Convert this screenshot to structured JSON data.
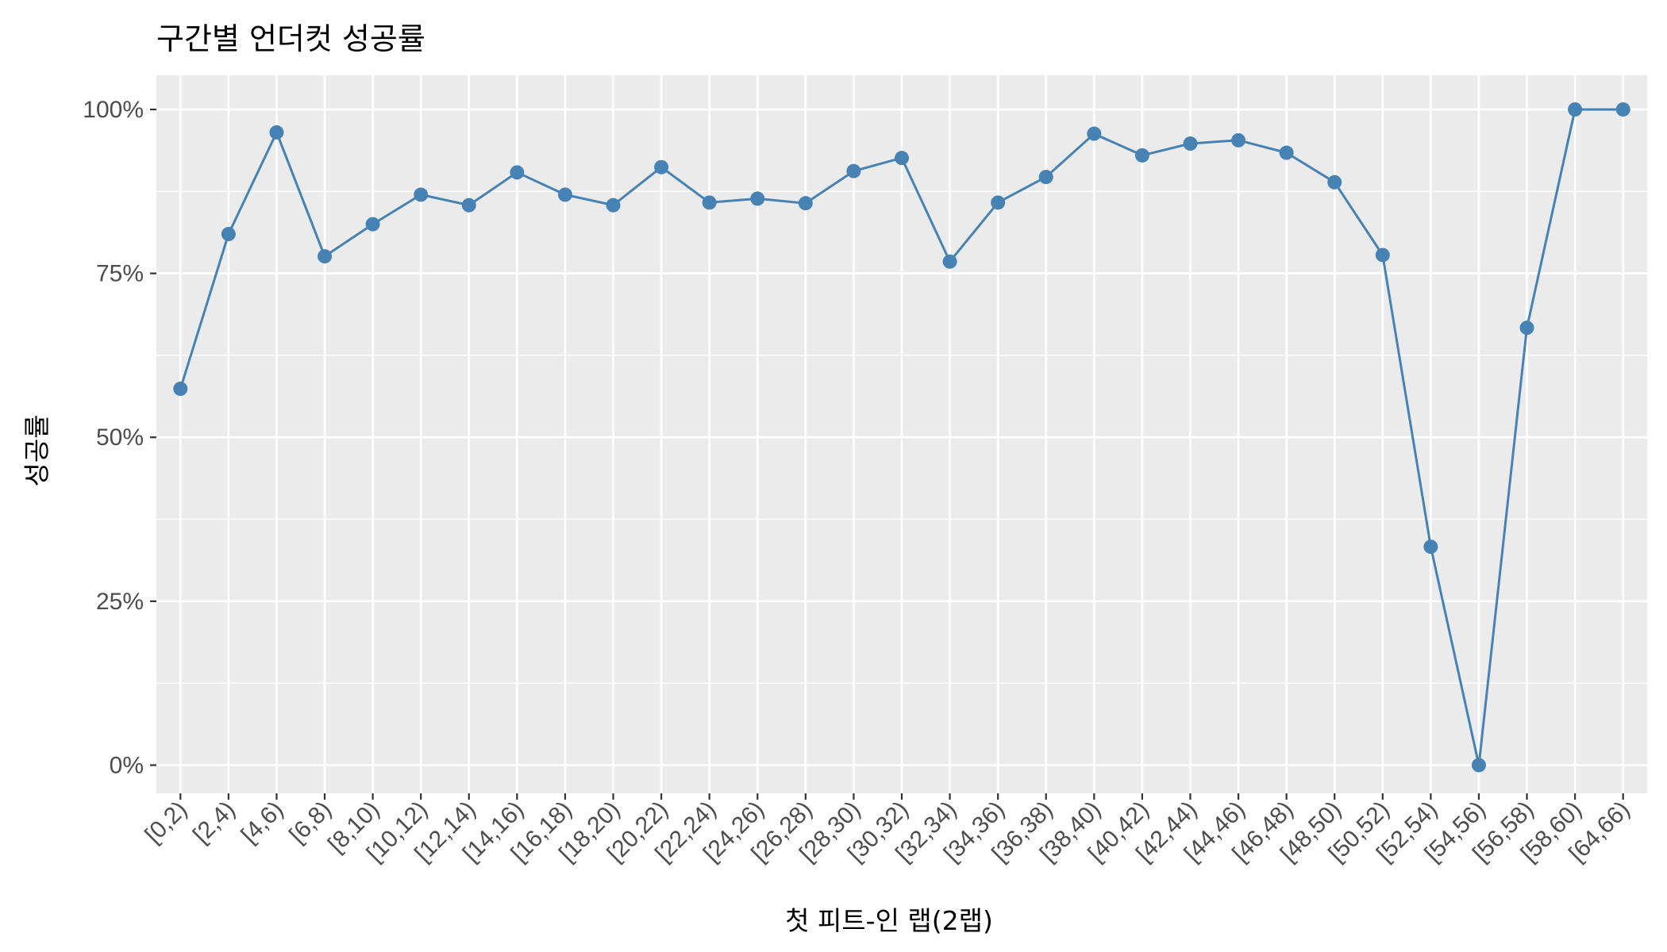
{
  "chart_data": {
    "type": "line",
    "title": "구간별 언더컷 성공률",
    "xlabel": "첫 피트-인 랩(2랩)",
    "ylabel": "성공률",
    "categories": [
      "[0,2)",
      "[2,4)",
      "[4,6)",
      "[6,8)",
      "[8,10)",
      "[10,12)",
      "[12,14)",
      "[14,16)",
      "[16,18)",
      "[18,20)",
      "[20,22)",
      "[22,24)",
      "[24,26)",
      "[26,28)",
      "[28,30)",
      "[30,32)",
      "[32,34)",
      "[34,36)",
      "[36,38)",
      "[38,40)",
      "[40,42)",
      "[42,44)",
      "[44,46)",
      "[46,48)",
      "[48,50)",
      "[50,52)",
      "[52,54)",
      "[54,56)",
      "[56,58)",
      "[58,60)",
      "[64,66)"
    ],
    "series": [
      {
        "values": [
          57.4,
          81.0,
          96.5,
          77.6,
          82.5,
          87.0,
          85.4,
          90.4,
          87.0,
          85.4,
          91.2,
          85.8,
          86.4,
          85.7,
          90.6,
          92.6,
          76.8,
          85.8,
          89.7,
          96.3,
          93.0,
          94.8,
          95.3,
          93.4,
          88.9,
          77.8,
          33.3,
          0.0,
          66.7,
          100.0,
          100.0
        ]
      }
    ],
    "y_ticks": [
      0,
      25,
      50,
      75,
      100
    ],
    "y_tick_labels": [
      "0%",
      "25%",
      "50%",
      "75%",
      "100%"
    ],
    "ylim": [
      -4.3,
      105.2
    ],
    "grid": true,
    "colors": {
      "line": "#4682b4",
      "panel": "#ebebeb",
      "grid": "#ffffff",
      "tick_text": "#4d4d4d",
      "tick_mark": "#333333"
    }
  }
}
